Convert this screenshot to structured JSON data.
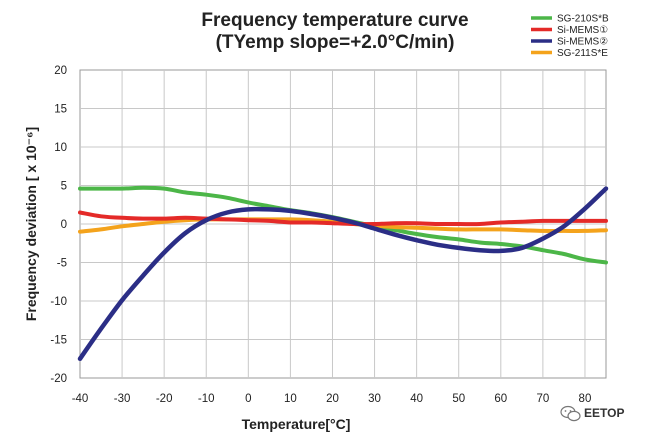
{
  "chart_data": {
    "type": "line",
    "title": [
      "Frequency temperature curve",
      "(TYemp slope=+2.0°C/min)"
    ],
    "xlabel": "Temperature[°C]",
    "ylabel": "Frequency deviation [ x 10⁻⁶]",
    "xlim": [
      -40,
      85
    ],
    "ylim": [
      -20,
      20
    ],
    "xticks": [
      -40,
      -30,
      -20,
      -10,
      0,
      10,
      20,
      30,
      40,
      50,
      60,
      70,
      80
    ],
    "yticks": [
      -20,
      -15,
      -10,
      -5,
      0,
      5,
      10,
      15,
      20
    ],
    "grid": true,
    "legend_position": "top-right",
    "series": [
      {
        "name": "SG-210S*B",
        "color": "#4cb648",
        "x": [
          -40,
          -35,
          -30,
          -25,
          -20,
          -15,
          -10,
          -5,
          0,
          5,
          10,
          15,
          20,
          25,
          30,
          35,
          40,
          45,
          50,
          55,
          60,
          65,
          70,
          75,
          80,
          85
        ],
        "y": [
          4.6,
          4.6,
          4.6,
          4.7,
          4.6,
          4.1,
          3.8,
          3.4,
          2.8,
          2.3,
          1.8,
          1.4,
          0.9,
          0.3,
          -0.3,
          -0.8,
          -1.3,
          -1.7,
          -2.0,
          -2.4,
          -2.6,
          -2.9,
          -3.4,
          -3.9,
          -4.6,
          -5.0
        ]
      },
      {
        "name": "Si-MEMS①",
        "color": "#e42a28",
        "x": [
          -40,
          -35,
          -30,
          -25,
          -20,
          -15,
          -10,
          -5,
          0,
          5,
          10,
          15,
          20,
          25,
          30,
          35,
          40,
          45,
          50,
          55,
          60,
          65,
          70,
          75,
          80,
          85
        ],
        "y": [
          1.5,
          1.0,
          0.8,
          0.7,
          0.7,
          0.8,
          0.7,
          0.6,
          0.5,
          0.4,
          0.2,
          0.2,
          0.1,
          0.0,
          0.0,
          0.1,
          0.1,
          0.0,
          0.0,
          0.0,
          0.2,
          0.3,
          0.4,
          0.4,
          0.4,
          0.4
        ]
      },
      {
        "name": "Si-MEMS②",
        "color": "#2b2e86",
        "x": [
          -40,
          -35,
          -30,
          -25,
          -20,
          -15,
          -10,
          -5,
          0,
          5,
          10,
          15,
          20,
          25,
          30,
          35,
          40,
          45,
          50,
          55,
          60,
          65,
          70,
          75,
          80,
          85
        ],
        "y": [
          -17.5,
          -13.6,
          -9.9,
          -6.7,
          -3.7,
          -1.2,
          0.5,
          1.5,
          1.9,
          1.9,
          1.7,
          1.3,
          0.8,
          0.2,
          -0.6,
          -1.4,
          -2.1,
          -2.7,
          -3.1,
          -3.4,
          -3.5,
          -3.1,
          -1.9,
          -0.3,
          2.0,
          4.6
        ]
      },
      {
        "name": "SG-211S*E",
        "color": "#f4a31c",
        "x": [
          -40,
          -35,
          -30,
          -25,
          -20,
          -15,
          -10,
          -5,
          0,
          5,
          10,
          15,
          20,
          25,
          30,
          35,
          40,
          45,
          50,
          55,
          60,
          65,
          70,
          75,
          80,
          85
        ],
        "y": [
          -1.0,
          -0.7,
          -0.3,
          0.0,
          0.3,
          0.5,
          0.6,
          0.6,
          0.6,
          0.6,
          0.6,
          0.5,
          0.3,
          0.0,
          -0.2,
          -0.4,
          -0.5,
          -0.6,
          -0.7,
          -0.7,
          -0.7,
          -0.8,
          -0.9,
          -0.9,
          -0.9,
          -0.8
        ]
      }
    ]
  },
  "watermark": "EETOP"
}
